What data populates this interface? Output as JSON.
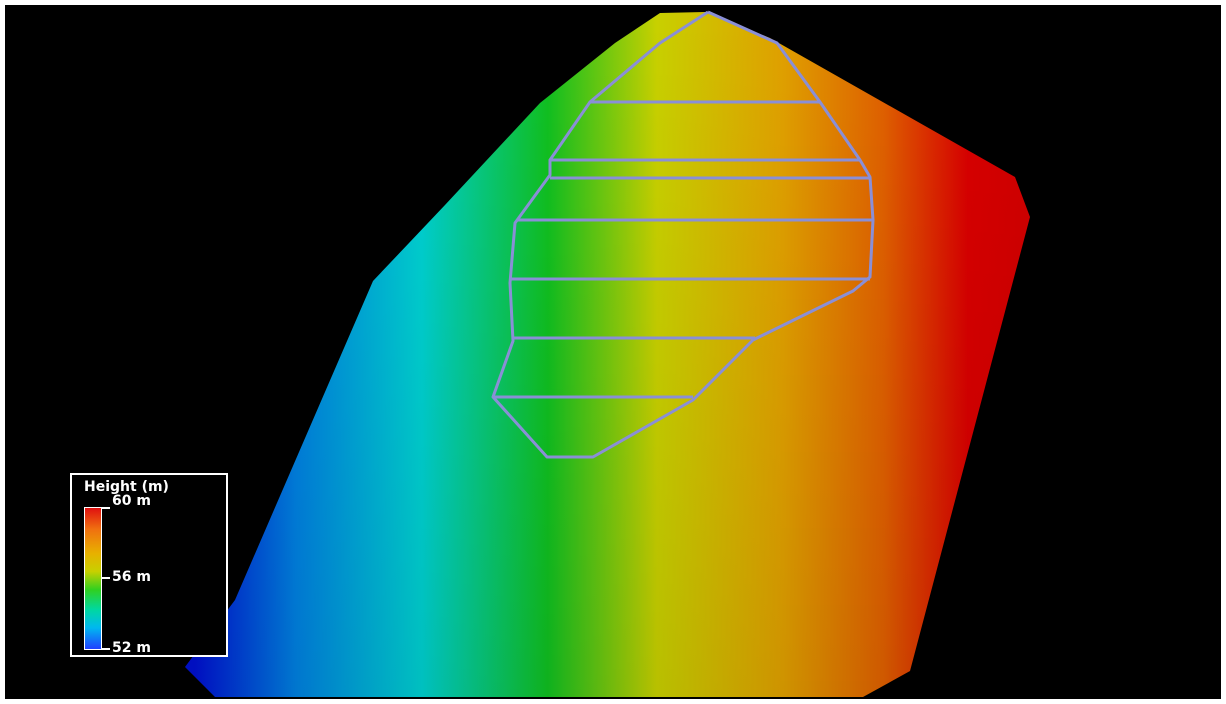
{
  "legend": {
    "title": "Height (m)",
    "max_label": "60 m",
    "mid_label": "56 m",
    "min_label": "52 m"
  },
  "colors": {
    "background": "#000000",
    "boundary_line": "#8a8fd6",
    "high": "#e01010",
    "mid": "#c8d000",
    "low": "#2040ff"
  }
}
